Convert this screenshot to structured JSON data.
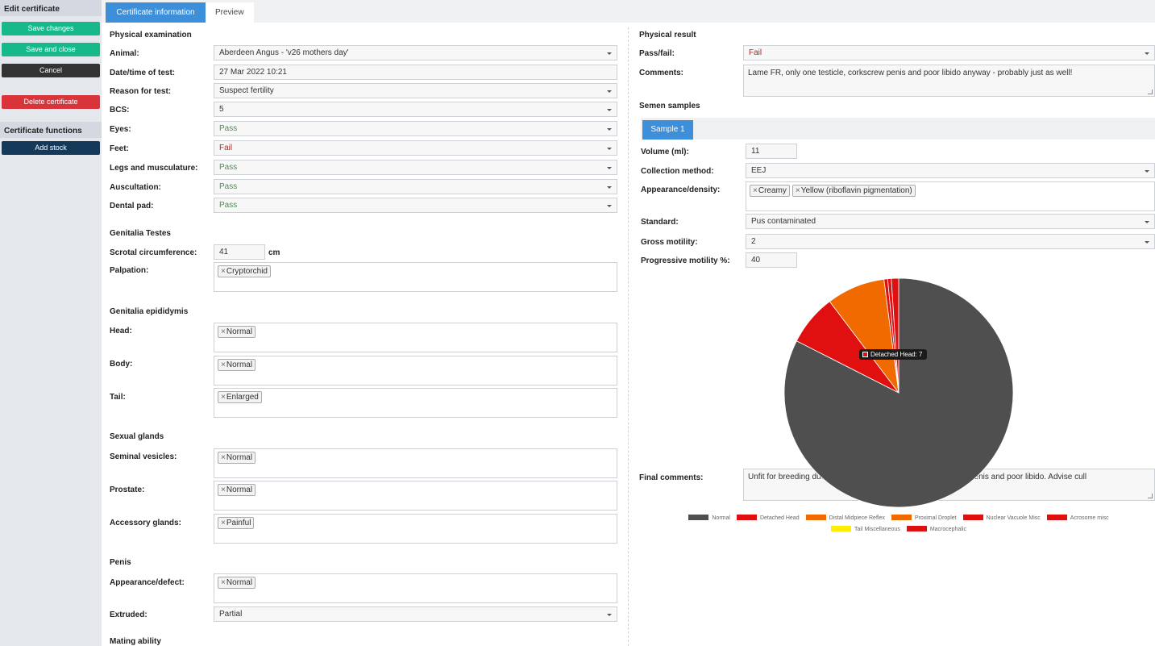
{
  "sidebar": {
    "edit_heading": "Edit certificate",
    "save_changes": "Save changes",
    "save_and_close": "Save and close",
    "cancel": "Cancel",
    "delete_certificate": "Delete certificate",
    "functions_heading": "Certificate functions",
    "add_stock": "Add stock"
  },
  "tabs": {
    "active": "Certificate information",
    "inactive": "Preview"
  },
  "left": {
    "physical_examination": "Physical examination",
    "animal_label": "Animal:",
    "animal_value": "Aberdeen Angus - 'v26 mothers day'",
    "datetime_label": "Date/time of test:",
    "datetime_value": "27 Mar 2022 10:21",
    "reason_label": "Reason for test:",
    "reason_value": "Suspect fertility",
    "bcs_label": "BCS:",
    "bcs_value": "5",
    "eyes_label": "Eyes:",
    "eyes_value": "Pass",
    "feet_label": "Feet:",
    "feet_value": "Fail",
    "legs_label": "Legs and musculature:",
    "legs_value": "Pass",
    "ausc_label": "Auscultation:",
    "ausc_value": "Pass",
    "dental_label": "Dental pad:",
    "dental_value": "Pass",
    "genitalia_testes": "Genitalia Testes",
    "scrotal_label": "Scrotal circumference:",
    "scrotal_value": "41",
    "scrotal_unit": "cm",
    "palpation_label": "Palpation:",
    "palpation_tag": "Cryptorchid",
    "genitalia_epididymis": "Genitalia epididymis",
    "head_label": "Head:",
    "head_tag": "Normal",
    "body_label": "Body:",
    "body_tag": "Normal",
    "tail_label": "Tail:",
    "tail_tag": "Enlarged",
    "sexual_glands": "Sexual glands",
    "seminal_label": "Seminal vesicles:",
    "seminal_tag": "Normal",
    "prostate_label": "Prostate:",
    "prostate_tag": "Normal",
    "accessory_label": "Accessory glands:",
    "accessory_tag": "Painful",
    "penis": "Penis",
    "appearance_label": "Appearance/defect:",
    "appearance_tag": "Normal",
    "extruded_label": "Extruded:",
    "extruded_value": "Partial",
    "mating_ability": "Mating ability"
  },
  "right": {
    "physical_result": "Physical result",
    "passfail_label": "Pass/fail:",
    "passfail_value": "Fail",
    "comments_label": "Comments:",
    "comments_value": "Lame FR, only one testicle, corkscrew penis and poor libido anyway - probably just as well!",
    "semen_samples": "Semen samples",
    "sample_tab": "Sample 1",
    "volume_label": "Volume (ml):",
    "volume_value": "11",
    "collection_label": "Collection method:",
    "collection_value": "EEJ",
    "appearance_label": "Appearance/density:",
    "appearance_tag1": "Creamy",
    "appearance_tag2": "Yellow (riboflavin pigmentation)",
    "standard_label": "Standard:",
    "standard_value": "Pus contaminated",
    "gross_label": "Gross motility:",
    "gross_value": "2",
    "progressive_label": "Progressive motility %:",
    "progressive_value": "40",
    "final_label": "Final comments:",
    "final_value_left": "Unfit for breeding due",
    "final_value_right": "w penis and poor libido. Advise cull"
  },
  "tag_remove": "×",
  "tooltip": "Detached Head: 7",
  "chart_data": {
    "type": "pie",
    "series": [
      {
        "name": "Normal",
        "value": 80,
        "color": "#4f4f4f"
      },
      {
        "name": "Detached Head",
        "value": 7,
        "color": "#e01010"
      },
      {
        "name": "Distal Midpiece Reflex",
        "value": 0,
        "color": "#f06a00"
      },
      {
        "name": "Proximal Droplet",
        "value": 8,
        "color": "#f06a00"
      },
      {
        "name": "Nuclear Vacuole Misc",
        "value": 0.5,
        "color": "#e01010"
      },
      {
        "name": "Acrosome misc",
        "value": 0.5,
        "color": "#e01010"
      },
      {
        "name": "Tail Miscellaneous",
        "value": 0,
        "color": "#ffee00"
      },
      {
        "name": "Macrocephalic",
        "value": 1,
        "color": "#e01010"
      }
    ]
  }
}
